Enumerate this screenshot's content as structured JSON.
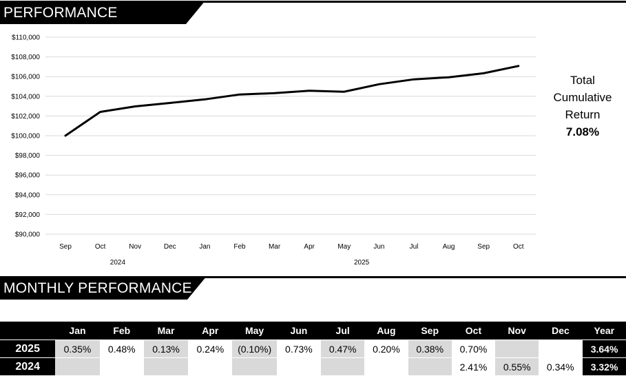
{
  "sections": {
    "performance_title": "PERFORMANCE",
    "monthly_title": "MONTHLY PERFORMANCE"
  },
  "summary": {
    "line1": "Total",
    "line2": "Cumulative",
    "line3": "Return",
    "value": "7.08%"
  },
  "chart_data": {
    "type": "line",
    "title": "",
    "xlabel": "",
    "ylabel": "",
    "x": [
      "Sep",
      "Oct",
      "Nov",
      "Dec",
      "Jan",
      "Feb",
      "Mar",
      "Apr",
      "May",
      "Jun",
      "Jul",
      "Aug",
      "Sep",
      "Oct"
    ],
    "year_groups": [
      {
        "label": "2024",
        "months": [
          "Sep",
          "Oct",
          "Nov",
          "Dec"
        ]
      },
      {
        "label": "2025",
        "months": [
          "Jan",
          "Feb",
          "Mar",
          "Apr",
          "May",
          "Jun",
          "Jul",
          "Aug",
          "Sep",
          "Oct"
        ]
      }
    ],
    "series": [
      {
        "values": [
          100000,
          102410,
          102973,
          103323,
          103685,
          104182,
          104318,
          104568,
          104464,
          105226,
          105721,
          105932,
          106335,
          107079
        ]
      }
    ],
    "yticks": [
      "$90,000",
      "$92,000",
      "$94,000",
      "$96,000",
      "$98,000",
      "$100,000",
      "$102,000",
      "$104,000",
      "$106,000",
      "$108,000",
      "$110,000"
    ],
    "ylim": [
      90000,
      110000
    ],
    "grid": true,
    "legend": "none",
    "line_color": "#000000",
    "grid_color": "#d9d9d9"
  },
  "monthly_table": {
    "headers": [
      "",
      "Jan",
      "Feb",
      "Mar",
      "Apr",
      "May",
      "Jun",
      "Jul",
      "Aug",
      "Sep",
      "Oct",
      "Nov",
      "Dec",
      "Year"
    ],
    "rows": [
      {
        "year": "2025",
        "cells": [
          "0.35%",
          "0.48%",
          "0.13%",
          "0.24%",
          "(0.10%)",
          "0.73%",
          "0.47%",
          "0.20%",
          "0.38%",
          "0.70%",
          "",
          ""
        ],
        "total": "3.64%"
      },
      {
        "year": "2024",
        "cells": [
          "",
          "",
          "",
          "",
          "",
          "",
          "",
          "",
          "",
          "2.41%",
          "0.55%",
          "0.34%"
        ],
        "total": "3.32%"
      }
    ]
  }
}
